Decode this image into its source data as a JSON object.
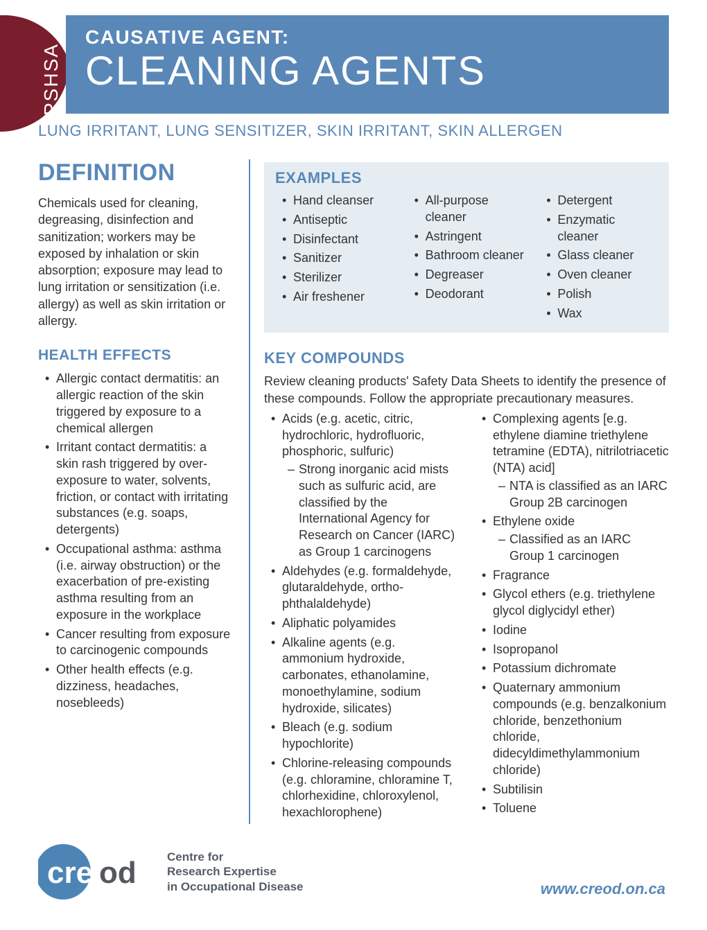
{
  "colors": {
    "accent": "#5988b8",
    "badge": "#7a1e2d",
    "text": "#333333",
    "examples_bg": "#e5edf3",
    "creod_blue": "#4c85b5",
    "creod_grey": "#54585e"
  },
  "header": {
    "badge": "PSHSA",
    "kicker": "CAUSATIVE AGENT:",
    "title": "CLEANING AGENTS"
  },
  "subtitle": "LUNG IRRITANT, LUNG SENSITIZER, SKIN IRRITANT, SKIN ALLERGEN",
  "definition": {
    "heading": "DEFINITION",
    "body": "Chemicals used for cleaning, degreasing, disinfection and sanitization; workers may be exposed by inhalation or skin absorption; exposure may lead to lung irritation or sensitization (i.e. allergy) as well as skin irritation or allergy."
  },
  "health_effects": {
    "heading": "HEALTH EFFECTS",
    "items": [
      "Allergic contact dermatitis: an allergic reaction of the skin triggered by exposure to a chemical allergen",
      "Irritant contact dermatitis: a skin rash triggered by over-exposure to water, solvents, friction, or contact with irritating substances (e.g. soaps, detergents)",
      "Occupational asthma: asthma (i.e. airway obstruction) or the exacerbation of pre-existing asthma resulting from an exposure in the workplace",
      "Cancer resulting from exposure to carcinogenic compounds",
      "Other health effects  (e.g. dizziness, headaches, nosebleeds)"
    ]
  },
  "examples": {
    "heading": "EXAMPLES",
    "col1": [
      "Hand cleanser",
      "Antiseptic",
      "Disinfectant",
      "Sanitizer",
      "Sterilizer",
      "Air freshener"
    ],
    "col2": [
      "All-purpose cleaner",
      "Astringent",
      "Bathroom cleaner",
      "Degreaser",
      "Deodorant"
    ],
    "col3": [
      "Detergent",
      "Enzymatic cleaner",
      "Glass cleaner",
      "Oven cleaner",
      "Polish",
      "Wax"
    ]
  },
  "key_compounds": {
    "heading": "KEY COMPOUNDS",
    "intro": "Review cleaning products' Safety Data Sheets to identify the presence of these compounds. Follow the appropriate precautionary measures.",
    "col1": [
      {
        "text": "Acids (e.g. acetic, citric, hydrochloric, hydrofluoric, phosphoric, sulfuric)",
        "sub": [
          "Strong inorganic acid mists such as sulfuric acid, are classified by the International Agency for Research on Cancer (IARC) as Group 1 carcinogens"
        ]
      },
      {
        "text": "Aldehydes (e.g. formaldehyde, glutaraldehyde, ortho-phthalaldehyde)"
      },
      {
        "text": "Aliphatic polyamides"
      },
      {
        "text": "Alkaline agents (e.g. ammonium hydroxide, carbonates, ethanolamine, monoethylamine, sodium hydroxide, silicates)"
      },
      {
        "text": "Bleach (e.g. sodium hypochlorite)"
      },
      {
        "text": "Chlorine-releasing compounds (e.g. chloramine, chloramine T, chlorhexidine, chloroxylenol, hexachlorophene)"
      }
    ],
    "col2": [
      {
        "text": "Complexing agents [e.g. ethylene diamine triethylene tetramine (EDTA), nitrilotriacetic (NTA) acid]",
        "sub": [
          "NTA is classified as an IARC Group 2B carcinogen"
        ]
      },
      {
        "text": "Ethylene oxide",
        "sub": [
          "Classified as an IARC Group 1 carcinogen"
        ]
      },
      {
        "text": "Fragrance"
      },
      {
        "text": "Glycol ethers (e.g. triethylene glycol diglycidyl ether)"
      },
      {
        "text": "Iodine"
      },
      {
        "text": "Isopropanol"
      },
      {
        "text": "Potassium dichromate"
      },
      {
        "text": "Quaternary ammonium compounds (e.g. benzalkonium chloride, benzethonium chloride, didecyldimethylammonium chloride)"
      },
      {
        "text": "Subtilisin"
      },
      {
        "text": "Toluene"
      }
    ]
  },
  "footer": {
    "logo_text": "creod",
    "tagline_l1": "Centre for",
    "tagline_l2": "Research Expertise",
    "tagline_l3": "in Occupational Disease",
    "url": "www.creod.on.ca"
  }
}
